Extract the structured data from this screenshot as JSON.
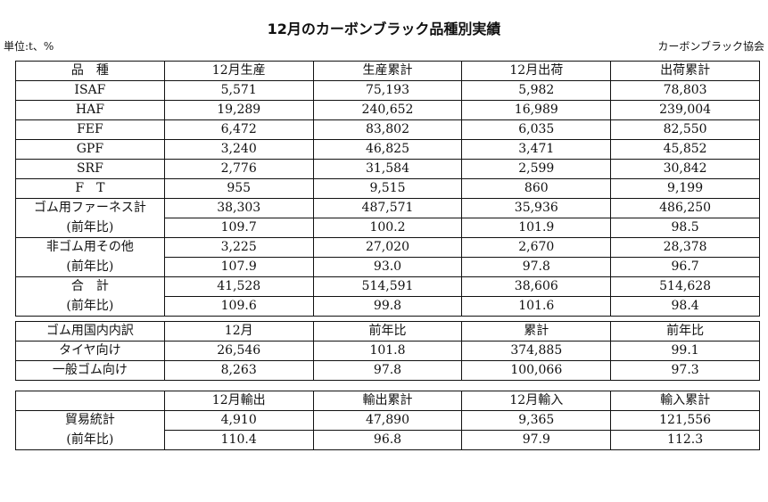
{
  "title": "12月のカーボンブラック品種別実績",
  "unit": "単位:t、%",
  "organization": "カーボンブラック協会",
  "production_table": {
    "headers": [
      "品　種",
      "12月生産",
      "生産累計",
      "12月出荷",
      "出荷累計"
    ],
    "rows": [
      [
        "ISAF",
        "5,571",
        "75,193",
        "5,982",
        "78,803"
      ],
      [
        "HAF",
        "19,289",
        "240,652",
        "16,989",
        "239,004"
      ],
      [
        "FEF",
        "6,472",
        "83,802",
        "6,035",
        "82,550"
      ],
      [
        "GPF",
        "3,240",
        "46,825",
        "3,471",
        "45,852"
      ],
      [
        "SRF",
        "2,776",
        "31,584",
        "2,599",
        "30,842"
      ],
      [
        "F　T",
        "955",
        "9,515",
        "860",
        "9,199"
      ],
      [
        "ゴム用ファーネス計",
        "38,303",
        "487,571",
        "35,936",
        "486,250"
      ],
      [
        "(前年比)",
        "109.7",
        "100.2",
        "101.9",
        "98.5"
      ],
      [
        "非ゴム用その他",
        "3,225",
        "27,020",
        "2,670",
        "28,378"
      ],
      [
        "(前年比)",
        "107.9",
        "93.0",
        "97.8",
        "96.7"
      ],
      [
        "合　計",
        "41,528",
        "514,591",
        "38,606",
        "514,628"
      ],
      [
        "(前年比)",
        "109.6",
        "99.8",
        "101.6",
        "98.4"
      ]
    ]
  },
  "domestic_table": {
    "headers": [
      "ゴム用国内内訳",
      "12月",
      "前年比",
      "累計",
      "前年比"
    ],
    "rows": [
      [
        "タイヤ向け",
        "26,546",
        "101.8",
        "374,885",
        "99.1"
      ],
      [
        "一般ゴム向け",
        "8,263",
        "97.8",
        "100,066",
        "97.3"
      ]
    ]
  },
  "trade_table": {
    "headers": [
      "",
      "12月輸出",
      "輸出累計",
      "12月輸入",
      "輸入累計"
    ],
    "rows": [
      [
        "貿易統計",
        "4,910",
        "47,890",
        "9,365",
        "121,556"
      ],
      [
        "(前年比)",
        "110.4",
        "96.8",
        "97.9",
        "112.3"
      ]
    ]
  }
}
